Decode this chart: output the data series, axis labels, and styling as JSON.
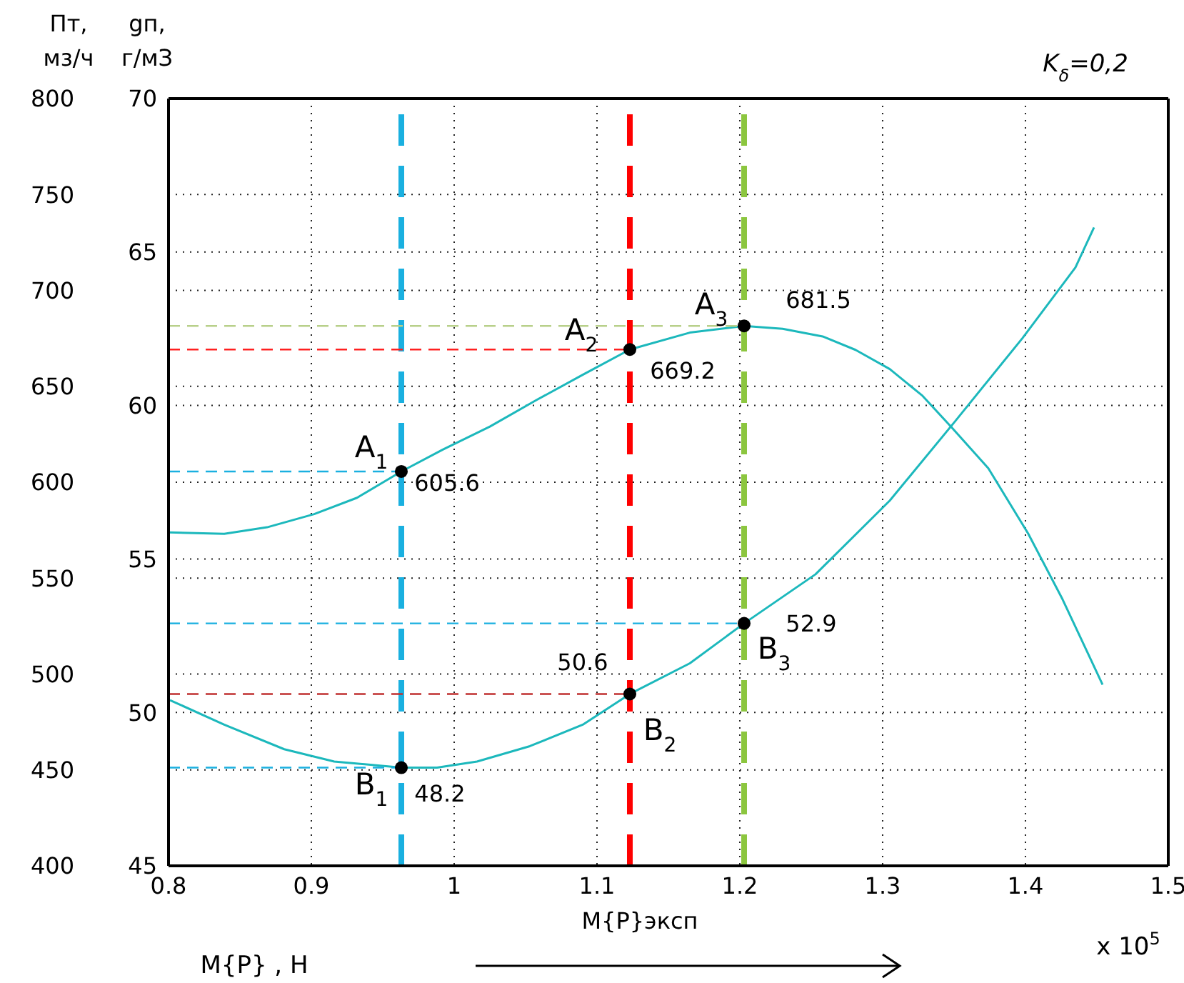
{
  "chart_data": {
    "type": "line",
    "xlabel": "M{P}эксп",
    "ylabel": "Пт, мз/ч",
    "y2label": "gп, г/мЗ",
    "xlim": [
      0.8,
      1.5
    ],
    "xticks": [
      0.8,
      0.9,
      1,
      1.1,
      1.2,
      1.3,
      1.4,
      1.5
    ],
    "ylim": [
      400,
      800
    ],
    "yticks": [
      400,
      450,
      500,
      550,
      600,
      650,
      700,
      750,
      800
    ],
    "y2lim": [
      45,
      70
    ],
    "y2ticks": [
      45,
      50,
      55,
      60,
      65,
      70
    ],
    "grid": true,
    "marker": "none",
    "line_style": "solid",
    "series": [
      {
        "color": "#1cb8bc",
        "x": [
          0.801,
          0.839,
          0.869,
          0.902,
          0.932,
          0.963,
          0.992,
          1.025,
          1.058,
          1.09,
          1.123,
          1.165,
          1.203,
          1.23,
          1.258,
          1.281,
          1.305,
          1.328,
          1.349,
          1.374,
          1.402,
          1.426,
          1.454
        ],
        "values": [
          573.8,
          573.1,
          576.5,
          583.4,
          591.9,
          605.6,
          617,
          629,
          643,
          656,
          669.2,
          678,
          681.5,
          680,
          676,
          669,
          659,
          645,
          628,
          607.3,
          573.1,
          538.9,
          494.5
        ]
      },
      {
        "axis": "y2",
        "color": "#1cb8bc",
        "x": [
          0.801,
          0.839,
          0.881,
          0.916,
          0.963,
          0.988,
          1.016,
          1.053,
          1.09,
          1.123,
          1.165,
          1.203,
          1.253,
          1.305,
          1.351,
          1.398,
          1.435,
          1.448
        ],
        "values": [
          50.4,
          49.6,
          48.8,
          48.4,
          48.2,
          48.2,
          48.4,
          48.9,
          49.6,
          50.6,
          51.6,
          52.9,
          54.5,
          56.9,
          59.5,
          62.2,
          64.5,
          65.8
        ]
      },
      {
        "type": "line",
        "color": "#1ab0e0",
        "line_style": "dashed",
        "x": [
          0.8,
          0.963
        ],
        "values": [
          605.6,
          605.6
        ]
      },
      {
        "type": "line",
        "color": "#ff2020",
        "line_style": "dashed",
        "x": [
          0.8,
          1.123
        ],
        "values": [
          669.2,
          669.2
        ]
      },
      {
        "type": "line",
        "color": "#b8d08a",
        "line_style": "dashed",
        "x": [
          0.8,
          1.203
        ],
        "values": [
          681.5,
          681.5
        ]
      },
      {
        "type": "line",
        "axis": "y2",
        "color": "#1ab0e0",
        "line_style": "dashed",
        "x": [
          0.8,
          0.963
        ],
        "values": [
          48.2,
          48.2
        ]
      },
      {
        "type": "line",
        "axis": "y2",
        "color": "#c03030",
        "line_style": "dashed",
        "x": [
          0.8,
          1.123
        ],
        "values": [
          50.6,
          50.6
        ]
      },
      {
        "type": "line",
        "axis": "y2",
        "color": "#1ab0e0",
        "line_style": "dashed",
        "x": [
          0.8,
          1.203
        ],
        "values": [
          52.9,
          52.9
        ]
      },
      {
        "type": "scatter",
        "color": "#000000",
        "marker": "circle",
        "x": [
          0.963,
          1.123,
          1.203
        ],
        "values": [
          605.6,
          669.2,
          681.5
        ],
        "value_labels": [
          "605.6",
          "669.2",
          "681.5"
        ]
      },
      {
        "type": "scatter",
        "axis": "y2",
        "color": "#000000",
        "marker": "circle",
        "x": [
          0.963,
          1.123,
          1.203
        ],
        "values": [
          48.2,
          50.6,
          52.9
        ],
        "value_labels": [
          "48.2",
          "50.6",
          "52.9"
        ]
      }
    ],
    "ref_lines": [
      {
        "axis": "x",
        "value": 0.963,
        "color": "#1ab0e0",
        "line_style": "dashed"
      },
      {
        "axis": "x",
        "value": 1.123,
        "color": "#ff0000",
        "line_style": "dashed"
      },
      {
        "axis": "x",
        "value": 1.203,
        "color": "#8cc63f",
        "line_style": "dashed"
      }
    ],
    "annotations": [
      "K$_{δ}$=0,2",
      "x 10$^{5}$",
      "M{P} , H",
      "A$_{1}$",
      "A$_{2}$",
      "A$_{3}$",
      "B$_{1}$",
      "B$_{2}$",
      "B$_{3}$"
    ]
  }
}
